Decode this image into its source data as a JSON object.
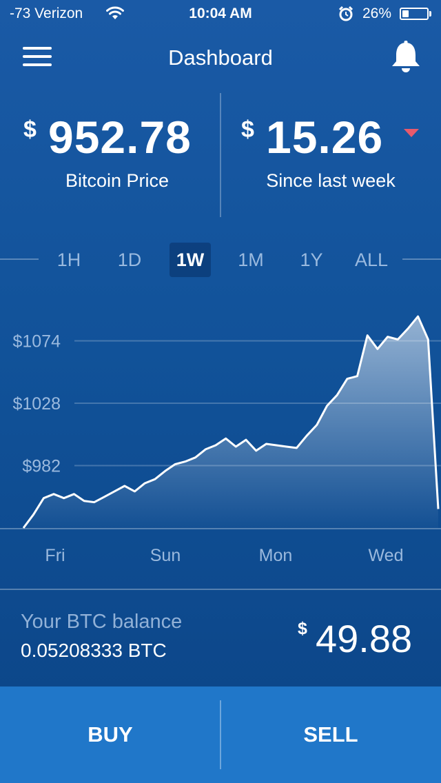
{
  "status_bar": {
    "carrier": "-73 Verizon",
    "time": "10:04 AM",
    "battery_percent": "26%",
    "battery_level": 0.26,
    "icons": [
      "wifi-icon",
      "alarm-icon",
      "battery-icon"
    ]
  },
  "header": {
    "title": "Dashboard",
    "menu_icon": "hamburger-menu-icon",
    "notification_icon": "bell-icon"
  },
  "stats": {
    "price": {
      "currency": "$",
      "value": "952.78",
      "label": "Bitcoin Price"
    },
    "change": {
      "currency": "$",
      "value": "15.26",
      "label": "Since last week",
      "direction": "down",
      "direction_color": "#e85a6c"
    }
  },
  "ranges": {
    "tabs": [
      "1H",
      "1D",
      "1W",
      "1M",
      "1Y",
      "ALL"
    ],
    "selected": "1W"
  },
  "chart": {
    "y_labels": [
      "$1074",
      "$1028",
      "$982"
    ],
    "x_labels": [
      "Fri",
      "Sun",
      "Mon",
      "Wed"
    ]
  },
  "chart_data": {
    "type": "area",
    "title": "",
    "xlabel": "",
    "ylabel": "",
    "x_ticks": [
      "Fri",
      "Sun",
      "Mon",
      "Wed"
    ],
    "y_ticks": [
      982,
      1028,
      1074
    ],
    "ylim": [
      936,
      1120
    ],
    "grid": true,
    "series": [
      {
        "values": [
          936,
          946,
          958,
          961,
          958,
          961,
          956,
          955,
          959,
          963,
          967,
          963,
          969,
          972,
          978,
          983,
          985,
          988,
          994,
          997,
          1002,
          996,
          1001,
          993,
          998,
          997,
          996,
          995,
          1004,
          1012,
          1026,
          1034,
          1046,
          1048,
          1078,
          1068,
          1077,
          1075,
          1083,
          1092,
          1075,
          950
        ]
      }
    ]
  },
  "balance": {
    "label": "Your BTC balance",
    "btc": "0.05208333 BTC",
    "currency": "$",
    "usd": "49.88"
  },
  "actions": {
    "buy": "BUY",
    "sell": "SELL"
  }
}
